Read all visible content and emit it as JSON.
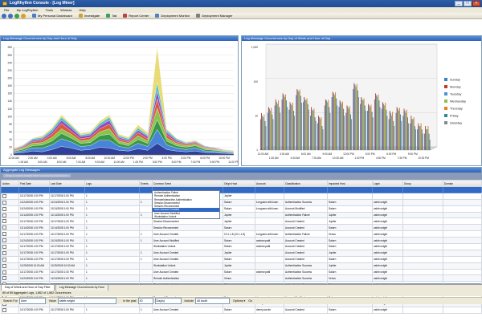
{
  "window": {
    "title": "LogRhythm Console - [Log Miner]"
  },
  "menu": [
    "File",
    "My LogRhythm",
    "Tools",
    "Window",
    "Help"
  ],
  "toolbar": {
    "investigate": "Investigate",
    "tail": "Tail",
    "personal_dashboard": "My Personal Dashboard",
    "report_center": "Report Center",
    "deployment_monitor": "Deployment Monitor",
    "deployment_manager": "Deployment Manager"
  },
  "left_chart": {
    "title": "Log Message Occurrences by Day and Hour of Day",
    "chart_data": {
      "type": "area",
      "stacked": true,
      "title": "Log Message Occurrences by Day and Hour of Day",
      "y_ticks": [
        "0",
        "20",
        "40",
        "60",
        "80",
        "100",
        "120",
        "140",
        "160",
        "180",
        "200",
        "220",
        "240",
        "260",
        "280"
      ],
      "ylim": [
        0,
        280
      ],
      "x_ticks_row1": [
        "12:00 AM",
        "2:00 AM",
        "4:00 AM",
        "6:00 AM",
        "8:00 AM",
        "10:00 AM",
        "12:00 PM",
        "2:00 PM",
        "4:00 PM",
        "6:00 PM",
        "8:00 PM",
        "10:00 PM"
      ],
      "x_ticks_row2": [
        "1:00 AM",
        "3:00 AM",
        "5:00 AM",
        "7:00 AM",
        "9:00 AM",
        "11:00 AM",
        "1:00 PM",
        "3:00 PM",
        "5:00 PM",
        "7:00 PM",
        "9:00 PM",
        "11:00 PM"
      ],
      "x": [
        "12:00 AM",
        "1:00 AM",
        "2:00 AM",
        "3:00 AM",
        "4:00 AM",
        "5:00 AM",
        "6:00 AM",
        "7:00 AM",
        "8:00 AM",
        "9:00 AM",
        "10:00 AM",
        "11:00 AM",
        "12:00 PM",
        "1:00 PM",
        "2:00 PM",
        "3:00 PM",
        "4:00 PM",
        "5:00 PM",
        "6:00 PM",
        "7:00 PM",
        "8:00 PM",
        "9:00 PM",
        "10:00 PM",
        "11:00 PM"
      ],
      "series": [
        {
          "color": "#1f2f8f",
          "values": [
            4,
            6,
            10,
            8,
            14,
            22,
            18,
            12,
            14,
            20,
            18,
            12,
            10,
            16,
            12,
            30,
            14,
            10,
            8,
            10,
            6,
            5,
            4,
            3
          ]
        },
        {
          "color": "#3a7ad8",
          "values": [
            3,
            5,
            8,
            10,
            12,
            20,
            16,
            10,
            10,
            18,
            20,
            10,
            8,
            14,
            10,
            36,
            12,
            8,
            6,
            8,
            4,
            4,
            3,
            2
          ]
        },
        {
          "color": "#2a8f3a",
          "values": [
            2,
            4,
            6,
            8,
            10,
            14,
            10,
            8,
            8,
            12,
            16,
            8,
            6,
            10,
            8,
            26,
            10,
            6,
            6,
            6,
            4,
            3,
            2,
            2
          ]
        },
        {
          "color": "#7fbf3f",
          "values": [
            2,
            3,
            6,
            6,
            10,
            12,
            10,
            6,
            8,
            10,
            14,
            6,
            6,
            10,
            6,
            30,
            8,
            6,
            4,
            4,
            3,
            2,
            2,
            1
          ]
        },
        {
          "color": "#d84a2a",
          "values": [
            2,
            3,
            4,
            6,
            8,
            14,
            8,
            6,
            6,
            8,
            12,
            6,
            4,
            8,
            6,
            24,
            8,
            4,
            4,
            4,
            2,
            2,
            1,
            1
          ]
        },
        {
          "color": "#8a3ab8",
          "values": [
            2,
            2,
            4,
            4,
            6,
            8,
            8,
            6,
            6,
            8,
            10,
            4,
            4,
            6,
            6,
            20,
            6,
            4,
            2,
            2,
            2,
            2,
            1,
            1
          ]
        },
        {
          "color": "#40b8c8",
          "values": [
            1,
            2,
            4,
            4,
            6,
            8,
            6,
            4,
            4,
            6,
            8,
            4,
            4,
            6,
            4,
            22,
            6,
            4,
            2,
            2,
            2,
            1,
            1,
            1
          ]
        },
        {
          "color": "#e8d86a",
          "values": [
            1,
            2,
            2,
            4,
            4,
            6,
            4,
            4,
            4,
            6,
            6,
            4,
            4,
            8,
            6,
            92,
            4,
            2,
            2,
            2,
            1,
            1,
            1,
            1
          ]
        }
      ]
    }
  },
  "right_chart": {
    "title": "Log Message Occurrences by Day of Week and Hour of Day",
    "chart_data": {
      "type": "bar",
      "title": "Log Message Occurrences by Day of Week and Hour of Day",
      "y_scale": "log",
      "y_ticks": [
        "1",
        "10",
        "100",
        "1,000"
      ],
      "x_ticks_row1": [
        "12:00 AM",
        "3:00 AM",
        "6:00 AM",
        "9:00 AM",
        "12:00 PM",
        "3:00 PM",
        "6:00 PM",
        "9:00 PM"
      ],
      "x_ticks_row2": [
        "1:30 AM",
        "4:30 AM",
        "7:30 AM",
        "10:30 AM",
        "1:30 PM",
        "4:30 PM",
        "7:30 PM",
        "10:30 PM"
      ],
      "legend_position": "right",
      "series": [
        {
          "name": "Sunday",
          "color": "#3b7fc4",
          "values": [
            8,
            12,
            20,
            30,
            15,
            40,
            25,
            10,
            6,
            20,
            35,
            18,
            12,
            60,
            22,
            14,
            30,
            16,
            8,
            12,
            10,
            6,
            4,
            3
          ]
        },
        {
          "name": "Monday",
          "color": "#c0392b",
          "values": [
            12,
            18,
            30,
            45,
            25,
            60,
            35,
            18,
            10,
            30,
            50,
            28,
            20,
            90,
            35,
            22,
            45,
            25,
            14,
            18,
            16,
            10,
            6,
            5
          ]
        },
        {
          "name": "Tuesday",
          "color": "#4a90d9",
          "values": [
            10,
            16,
            25,
            40,
            22,
            55,
            30,
            15,
            9,
            28,
            45,
            25,
            18,
            80,
            30,
            20,
            40,
            22,
            12,
            16,
            14,
            8,
            5,
            4
          ]
        },
        {
          "name": "Wednesday",
          "color": "#8ac43f",
          "values": [
            9,
            14,
            22,
            35,
            20,
            50,
            28,
            14,
            8,
            25,
            40,
            22,
            16,
            70,
            28,
            18,
            36,
            20,
            10,
            14,
            12,
            8,
            5,
            4
          ]
        },
        {
          "name": "Thursday",
          "color": "#e67e22",
          "values": [
            11,
            17,
            28,
            42,
            24,
            58,
            32,
            16,
            9,
            29,
            48,
            26,
            19,
            85,
            32,
            21,
            42,
            24,
            13,
            17,
            15,
            9,
            6,
            5
          ]
        },
        {
          "name": "Friday",
          "color": "#2e86ab",
          "values": [
            7,
            11,
            18,
            28,
            14,
            38,
            22,
            9,
            5,
            18,
            32,
            16,
            11,
            55,
            20,
            13,
            28,
            15,
            7,
            11,
            9,
            5,
            4,
            3
          ]
        },
        {
          "name": "Saturday",
          "color": "#7f8c8d",
          "values": [
            5,
            8,
            12,
            18,
            10,
            24,
            15,
            7,
            4,
            12,
            20,
            10,
            8,
            35,
            14,
            9,
            18,
            10,
            5,
            7,
            6,
            4,
            3,
            2
          ]
        }
      ]
    }
  },
  "aggregate": {
    "header": "Aggregate Log Messages",
    "group_hint": "Drag a column header here to group by that column",
    "columns": [
      "Action",
      "First Date",
      "Last Date",
      "Logs",
      "Events",
      "Common Event",
      "Origin Host",
      "Account",
      "Classification",
      "Impacted Host",
      "Login",
      "Group",
      "Domain"
    ],
    "rows": [
      [
        "11/17/2008 1:00 PM",
        "11/17/2008 1:00 PM",
        "1",
        "",
        "Authentication Failed",
        "Jupiter",
        "",
        "",
        "",
        "",
        "",
        "",
        "SANDBOX"
      ],
      [
        "11/24/2008 1:00 PM",
        "11/24/2008 1:00 PM",
        "1",
        "1",
        "Remote Authentication",
        "Saturn",
        "k.mguser.with.lowe.",
        "Authentication Success",
        "Saturn",
        "caleb.wright",
        "",
        "",
        "SANDBOX"
      ],
      [
        "11/24/2008 1:00 PM",
        "11/24/2008 1:00 PM",
        "1",
        "",
        "Remote Authentication",
        "Saturn",
        "k.mguser.with.lowe.",
        "Account Modified",
        "Saturn",
        "caleb.wright",
        "",
        "",
        "SANDBOX"
      ],
      [
        "11/14/2008 1:00 PM",
        "11/14/2008 1:00 PM",
        "1",
        "1",
        "RemoteInteractive Authentication",
        "Jupiter",
        "",
        "Authentication Failure",
        "Jupiter",
        "caleb.wright",
        "",
        "",
        "SANDBOX"
      ],
      [
        "11/17/2008 1:00 PM",
        "11/17/2008 1:00 PM",
        "1",
        "",
        "Session Disconnected",
        "Jupiter",
        "",
        "Account Created",
        "Jupiter",
        "caleb.wright",
        "",
        "",
        "SANDBOX"
      ],
      [
        "11/14/2008 1:00 PM",
        "11/14/2008 1:00 PM",
        "1",
        "",
        "Session Reconnected",
        "Saturn",
        "",
        "Account Created",
        "Saturn",
        "caleb.wright",
        "",
        "",
        "SANDBOX"
      ],
      [
        "11/17/2008 1:00 PM",
        "11/17/2008 1:00 PM",
        "1",
        "1",
        "User Account Created",
        "10.1.1.8 (10.1.1.8)",
        "k.mguser.with.lowe.",
        "Authentication Failure",
        "Venus",
        "caleb.wright",
        "",
        "",
        "SANDBOX"
      ],
      [
        "11/24/2008 1:00 PM",
        "11/24/2008 1:00 PM",
        "1",
        "1",
        "User Account Modified",
        "Saturn",
        "andrew.patti",
        "Account Created",
        "Saturn",
        "caleb.wright",
        "",
        "",
        "SANDBOX"
      ],
      [
        "11/17/2008 1:00 PM",
        "11/17/2008 1:00 PM",
        "1",
        "",
        "Workstation Unlock",
        "Saturn",
        "andrew.patti",
        "Account Created",
        "Saturn",
        "caleb.wright",
        "",
        "",
        "SANDBOX"
      ],
      [
        "11/17/2008 1:00 PM",
        "11/17/2008 1:00 PM",
        "1",
        "1",
        "User Account Created",
        "Jupiter",
        "",
        "Account Created",
        "Jupiter",
        "caleb.wright",
        "",
        "",
        "SANDBOX"
      ],
      [
        "11/17/2008 1:00 PM",
        "11/17/2008 1:00 PM",
        "1",
        "1",
        "User Account Created",
        "Saturn",
        "",
        "Account Created",
        "Saturn",
        "caleb.wright",
        "",
        "",
        "SANDBOX"
      ],
      [
        "11/25/2008 10:00 AM",
        "11/25/2008 10:00 AM",
        "1",
        "",
        "Workstation Unlock",
        "Jupiter",
        "",
        "Authentication Success",
        "Jupiter",
        "caleb.wright",
        "",
        "",
        "SANDBOX"
      ],
      [
        "11/17/2008 1:00 PM",
        "11/17/2008 1:00 PM",
        "1",
        "",
        "User Account Created",
        "Saturn",
        "andrew.patti",
        "Authentication Success",
        "Saturn",
        "caleb.wright",
        "",
        "",
        "SANDBOX"
      ],
      [
        "11/24/2008 1:00 PM",
        "11/24/2008 1:00 PM",
        "1",
        "",
        "Remote Authentication",
        "Venus",
        "",
        "Authentication Success",
        "Venus",
        "caleb.wright",
        "",
        "",
        "SANDBOX"
      ],
      [
        "11/17/2008 1:00 PM",
        "11/17/2008 1:00 PM",
        "1",
        "1",
        "Remote Authentication",
        "Saturn",
        "",
        "Authentication Success",
        "Saturn",
        "caleb.wright",
        "",
        "",
        "SANDBOX"
      ],
      [
        "11/17/2008 1:00 PM",
        "11/17/2008 1:00 PM",
        "1",
        "",
        "Account Unlocked",
        "Saturn",
        "pat.bostamonte",
        "Account Created",
        "Saturn",
        "caleb.wright",
        "",
        "",
        "SANDBOX"
      ],
      [
        "11/14/2008 1:00 PM",
        "11/14/2008 1:00 PM",
        "1",
        "",
        "Password Changed",
        "Saturn",
        "denny.scrote",
        "Account Modified",
        "Saturn",
        "caleb.wright",
        "",
        "",
        "SANDBOX"
      ],
      [
        "11/17/2008 1:00 PM",
        "11/17/2008 1:00 PM",
        "1",
        "1",
        "User Account Modified",
        "Saturn",
        "denny.scrote",
        "Account Modified",
        "Saturn",
        "caleb.wright",
        "",
        "",
        "SANDBOX"
      ],
      [
        "11/17/2008 1:00 PM",
        "11/17/2008 1:00 PM",
        "1",
        "1",
        "User Account Created",
        "Saturn",
        "denny.scrote",
        "Account Created",
        "Saturn",
        "caleb.wright",
        "",
        "",
        "SANDBOX"
      ]
    ],
    "dropdown_options": [
      "Authentication Failed",
      "Remote Authentication",
      "RemoteInteractive Authentication",
      "Session Disconnected",
      "Session Reconnected",
      "User Account Created",
      "User Account Modified",
      "Workstation Unlock"
    ],
    "dropdown_selected_index": 5
  },
  "tabs": [
    "Day of Week and Hour of Day Filter",
    "Log Message Occurrences by Hour"
  ],
  "status": "89 of 89 Aggregate Logs, 1,862 of 1,862 Occurrences",
  "filterbar": {
    "search_for": "Search For",
    "search_field": "User",
    "value_label": "Value",
    "value": "caleb.wright",
    "in_past": "In the past",
    "in_past_value": "30",
    "period": "Day(s)",
    "include": "Include",
    "include_value": "All Audit",
    "options": "Options ▾",
    "go": "Go"
  }
}
